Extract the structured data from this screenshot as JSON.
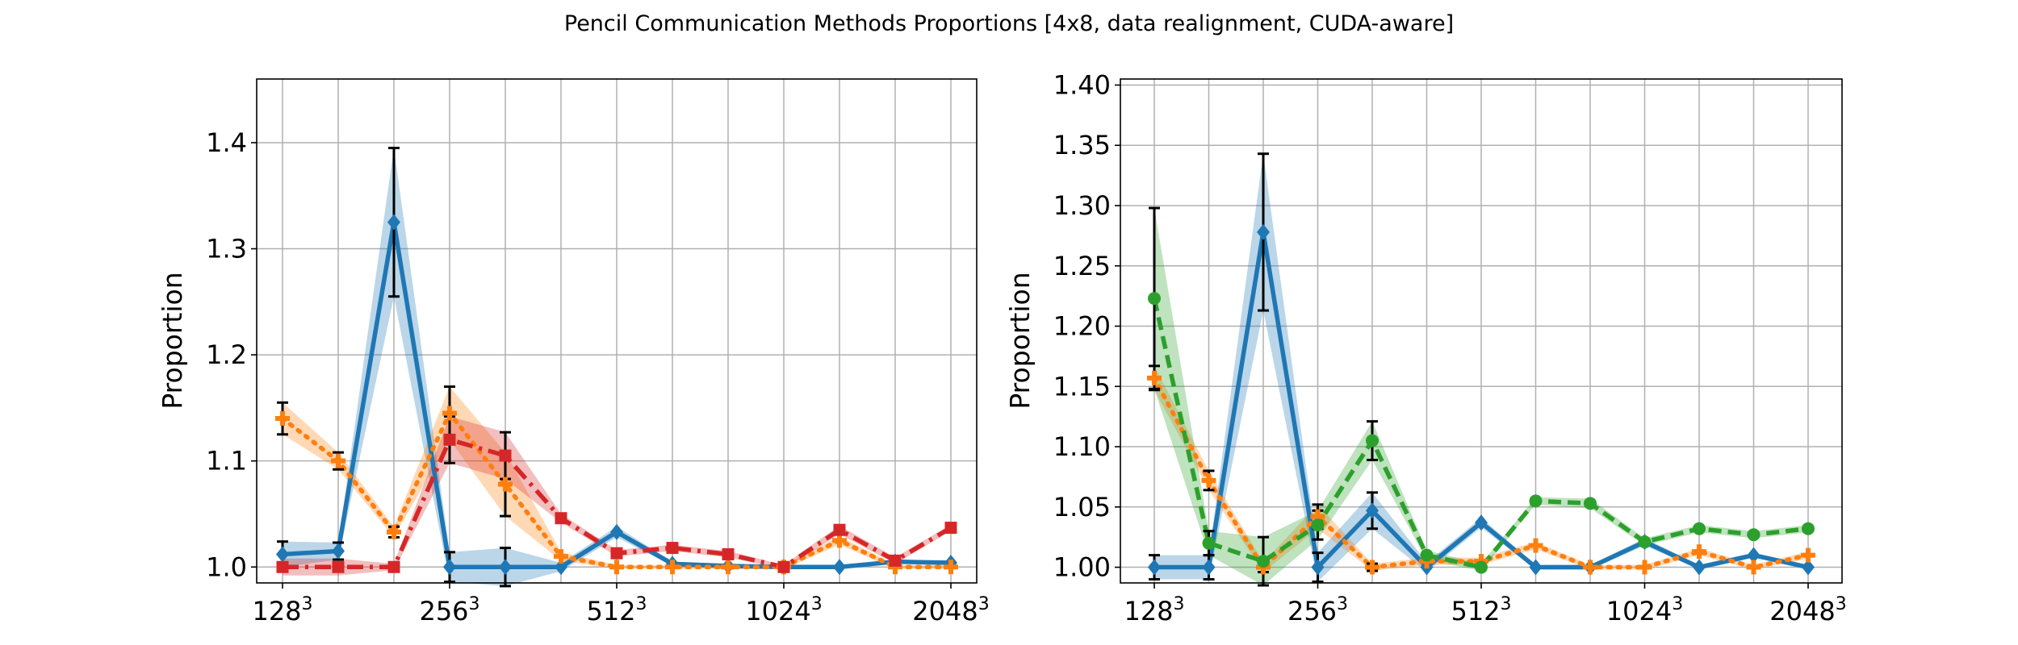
{
  "title": "Pencil Communication Methods Proportions [4x8, data realignment, CUDA-aware]",
  "colors": {
    "blue": "#1f77b4",
    "orange": "#ff7f0e",
    "red": "#d62728",
    "green": "#2ca02c",
    "grid": "#b0b0b0",
    "errorbar": "#000000"
  },
  "chart_data": [
    {
      "type": "line",
      "ylabel": "Proportion",
      "xlabel": "",
      "grid": true,
      "ylim": [
        0.985,
        1.46
      ],
      "yticks": [
        "1.0",
        "1.1",
        "1.2",
        "1.3",
        "1.4"
      ],
      "ytick_values": [
        1.0,
        1.1,
        1.2,
        1.3,
        1.4
      ],
      "xtick_labels": [
        {
          "base": "128",
          "exp": "3",
          "index": 0
        },
        {
          "base": "256",
          "exp": "3",
          "index": 3
        },
        {
          "base": "512",
          "exp": "3",
          "index": 6
        },
        {
          "base": "1024",
          "exp": "3",
          "index": 9
        },
        {
          "base": "2048",
          "exp": "3",
          "index": 12
        }
      ],
      "x": [
        0,
        1,
        2,
        3,
        4,
        5,
        6,
        7,
        8,
        9,
        10,
        11,
        12
      ],
      "series": [
        {
          "color": "blue",
          "marker": "diamond",
          "dash": "solid",
          "values": [
            1.012,
            1.015,
            1.325,
            1.0,
            1.0,
            1.0,
            1.033,
            1.003,
            1.001,
            1.0,
            1.0,
            1.005,
            1.004
          ],
          "band": [
            0.012,
            0.008,
            0.07,
            0.014,
            0.018,
            0.004,
            0.005,
            0.002,
            0.002,
            0.002,
            0.002,
            0.002,
            0.002
          ],
          "errorbars": [
            0,
            1,
            2,
            3,
            4
          ]
        },
        {
          "color": "orange",
          "marker": "plus",
          "dash": "dotted",
          "values": [
            1.14,
            1.1,
            1.033,
            1.145,
            1.078,
            1.01,
            1.0,
            1.0,
            1.0,
            1.0,
            1.025,
            1.0,
            1.0
          ],
          "band": [
            0.015,
            0.008,
            0.005,
            0.025,
            0.03,
            0.004,
            0.002,
            0.002,
            0.002,
            0.002,
            0.004,
            0.002,
            0.002
          ],
          "errorbars": [
            0,
            1,
            2,
            3,
            4
          ]
        },
        {
          "color": "red",
          "marker": "square",
          "dash": "dashdot",
          "values": [
            1.0,
            1.0,
            1.0,
            1.12,
            1.105,
            1.046,
            1.013,
            1.018,
            1.012,
            1.0,
            1.035,
            1.006,
            1.037
          ],
          "band": [
            0.008,
            0.008,
            0.003,
            0.022,
            0.022,
            0.004,
            0.003,
            0.003,
            0.003,
            0.002,
            0.004,
            0.003,
            0.003
          ],
          "errorbars": [
            3,
            4
          ]
        }
      ]
    },
    {
      "type": "line",
      "ylabel": "Proportion",
      "xlabel": "",
      "grid": true,
      "ylim": [
        0.987,
        1.405
      ],
      "yticks": [
        "1.00",
        "1.05",
        "1.10",
        "1.15",
        "1.20",
        "1.25",
        "1.30",
        "1.35",
        "1.40"
      ],
      "ytick_values": [
        1.0,
        1.05,
        1.1,
        1.15,
        1.2,
        1.25,
        1.3,
        1.35,
        1.4
      ],
      "xtick_labels": [
        {
          "base": "128",
          "exp": "3",
          "index": 0
        },
        {
          "base": "256",
          "exp": "3",
          "index": 3
        },
        {
          "base": "512",
          "exp": "3",
          "index": 6
        },
        {
          "base": "1024",
          "exp": "3",
          "index": 9
        },
        {
          "base": "2048",
          "exp": "3",
          "index": 12
        }
      ],
      "x": [
        0,
        1,
        2,
        3,
        4,
        5,
        6,
        7,
        8,
        9,
        10,
        11,
        12
      ],
      "series": [
        {
          "color": "blue",
          "marker": "diamond",
          "dash": "solid",
          "values": [
            1.0,
            1.0,
            1.278,
            1.0,
            1.047,
            1.0,
            1.037,
            1.0,
            1.0,
            1.021,
            1.0,
            1.01,
            1.0
          ],
          "band": [
            0.01,
            0.01,
            0.065,
            0.012,
            0.015,
            0.004,
            0.004,
            0.002,
            0.002,
            0.003,
            0.002,
            0.002,
            0.002
          ],
          "errorbars": [
            0,
            1,
            2,
            3,
            4
          ]
        },
        {
          "color": "orange",
          "marker": "plus",
          "dash": "dotted",
          "values": [
            1.157,
            1.072,
            1.0,
            1.042,
            1.0,
            1.005,
            1.005,
            1.018,
            1.0,
            1.0,
            1.013,
            1.0,
            1.01
          ],
          "band": [
            0.01,
            0.008,
            0.004,
            0.01,
            0.003,
            0.003,
            0.003,
            0.003,
            0.002,
            0.002,
            0.003,
            0.002,
            0.003
          ],
          "errorbars": [
            0,
            1,
            2,
            3,
            4
          ]
        },
        {
          "color": "green",
          "marker": "circle",
          "dash": "dashed",
          "values": [
            1.223,
            1.02,
            1.005,
            1.035,
            1.105,
            1.01,
            1.0,
            1.055,
            1.053,
            1.021,
            1.032,
            1.027,
            1.032
          ],
          "band": [
            0.075,
            0.01,
            0.02,
            0.012,
            0.016,
            0.004,
            0.003,
            0.003,
            0.004,
            0.003,
            0.003,
            0.003,
            0.003
          ],
          "errorbars": [
            0,
            1,
            2,
            3,
            4
          ]
        }
      ]
    }
  ]
}
